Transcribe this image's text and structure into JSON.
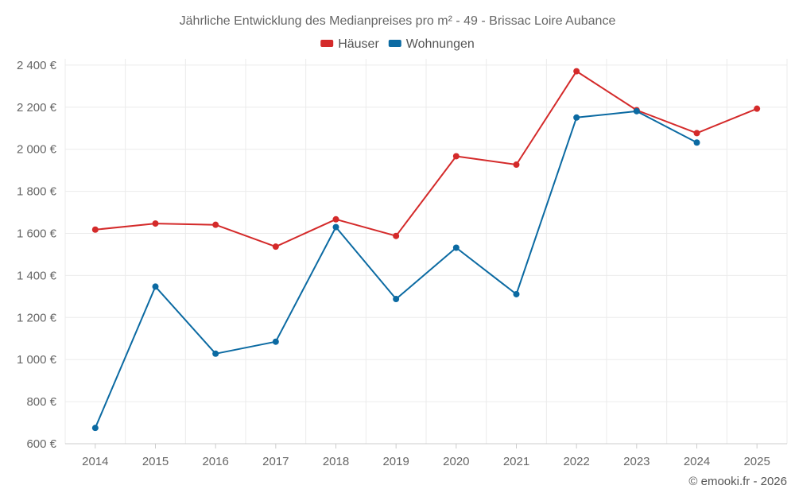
{
  "chart_data": {
    "type": "line",
    "title": "Jährliche Entwicklung des Medianpreises pro m² - 49 - Brissac Loire Aubance",
    "categories": [
      "2014",
      "2015",
      "2016",
      "2017",
      "2018",
      "2019",
      "2020",
      "2021",
      "2022",
      "2023",
      "2024",
      "2025"
    ],
    "series": [
      {
        "name": "Häuser",
        "color": "#d42a2a",
        "values": [
          1618,
          1647,
          1641,
          1537,
          1667,
          1588,
          1967,
          1927,
          2371,
          2186,
          2077,
          2193
        ]
      },
      {
        "name": "Wohnungen",
        "color": "#0b6aa2",
        "values": [
          675,
          1347,
          1028,
          1085,
          1630,
          1288,
          1532,
          1311,
          2151,
          2181,
          2032,
          null
        ]
      }
    ],
    "y_ticks": [
      {
        "value": 600,
        "label": "600 €"
      },
      {
        "value": 800,
        "label": "800 €"
      },
      {
        "value": 1000,
        "label": "1 000 €"
      },
      {
        "value": 1200,
        "label": "1 200 €"
      },
      {
        "value": 1400,
        "label": "1 400 €"
      },
      {
        "value": 1600,
        "label": "1 600 €"
      },
      {
        "value": 1800,
        "label": "1 800 €"
      },
      {
        "value": 2000,
        "label": "2 000 €"
      },
      {
        "value": 2200,
        "label": "2 200 €"
      },
      {
        "value": 2400,
        "label": "2 400 €"
      }
    ],
    "ylim": [
      600,
      2430
    ],
    "xlabel": "",
    "ylabel": "",
    "grid": true,
    "legend_position": "top-center"
  },
  "credit": "© emooki.fr - 2026"
}
